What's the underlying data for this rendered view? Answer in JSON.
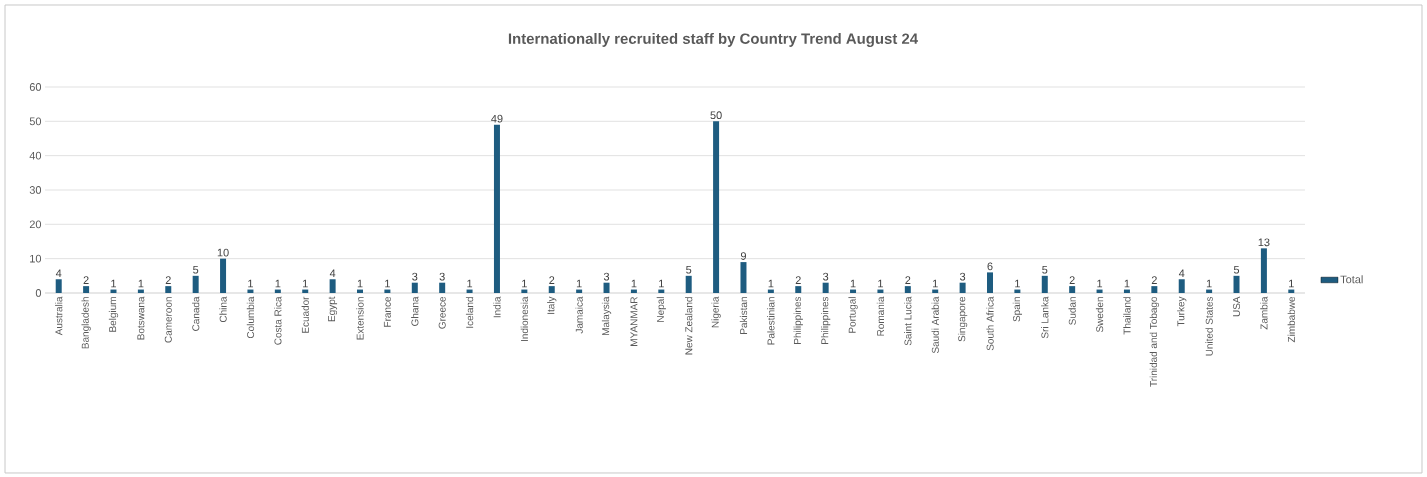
{
  "chart_data": {
    "type": "bar",
    "title": "Internationally recruited staff by Country Trend August 24",
    "categories": [
      "Australia",
      "Bangladesh",
      "Belgium",
      "Botswana",
      "Cameroon",
      "Canada",
      "China",
      "Columbia",
      "Costa Rica",
      "Ecuador",
      "Egypt",
      "Extension",
      "France",
      "Ghana",
      "Greece",
      "Iceland",
      "India",
      "Indionesia",
      "Italy",
      "Jamaica",
      "Malaysia",
      "MYANMAR",
      "Nepal",
      "New Zealand",
      "Nigeria",
      "Pakistan",
      "Palestinian",
      "Philippines",
      "Philippines",
      "Portugal",
      "Romania",
      "Saint Lucia",
      "Saudi Arabia",
      "Singapore",
      "South Africa",
      "Spain",
      "Sri Lanka",
      "Sudan",
      "Sweden",
      "Thailand",
      "Trinidad and Tobago",
      "Turkey",
      "United States",
      "USA",
      "Zambia",
      "Zimbabwe"
    ],
    "series": [
      {
        "name": "Total",
        "color": "#1e5c80",
        "values": [
          4,
          2,
          1,
          1,
          2,
          5,
          10,
          1,
          1,
          1,
          4,
          1,
          1,
          3,
          3,
          1,
          49,
          1,
          2,
          1,
          3,
          1,
          1,
          5,
          50,
          9,
          1,
          2,
          3,
          1,
          1,
          2,
          1,
          3,
          6,
          1,
          5,
          2,
          1,
          1,
          2,
          4,
          1,
          5,
          13,
          1
        ]
      }
    ],
    "ylim": [
      0,
      60
    ],
    "yticks": [
      0,
      10,
      20,
      30,
      40,
      50,
      60
    ],
    "grid": "y",
    "legend": "right",
    "data_labels": true
  }
}
